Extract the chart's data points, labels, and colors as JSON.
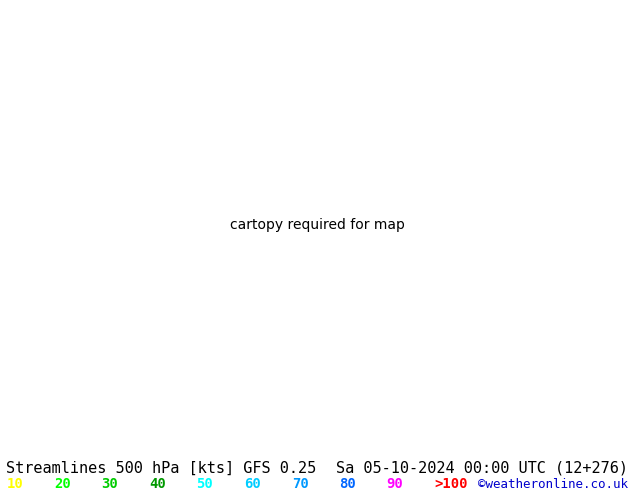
{
  "title_left": "Streamlines 500 hPa [kts] GFS 0.25",
  "title_right": "Sa 05-10-2024 00:00 UTC (12+276)",
  "credit": "©weatheronline.co.uk",
  "legend_values": [
    "10",
    "20",
    "30",
    "40",
    "50",
    "60",
    "70",
    "80",
    "90",
    ">100"
  ],
  "legend_colors": [
    "#ffff00",
    "#00ff00",
    "#00cc00",
    "#009900",
    "#00ffff",
    "#00ccff",
    "#0099ff",
    "#0066ff",
    "#ff00ff",
    "#ff0000"
  ],
  "background_color": "#ffffff",
  "land_color_low": "#f0f0f0",
  "land_color_high": "#90ee90",
  "text_color": "#000000",
  "title_fontsize": 11,
  "credit_fontsize": 9,
  "legend_fontsize": 10,
  "figsize": [
    6.34,
    4.9
  ],
  "dpi": 100,
  "extent": [
    -5,
    35,
    54,
    72
  ],
  "streamline_speed_thresholds": [
    10,
    20,
    30,
    40,
    50,
    60,
    70,
    80,
    90,
    100
  ],
  "colormap_speeds": {
    "10": "#ffff00",
    "20": "#aaff00",
    "30": "#55ff00",
    "40": "#00ff55",
    "50": "#00ffaa",
    "60": "#00ffff",
    "70": "#00aaff",
    "80": "#0055ff",
    "90": "#aa00ff",
    "100": "#ff00ff"
  }
}
